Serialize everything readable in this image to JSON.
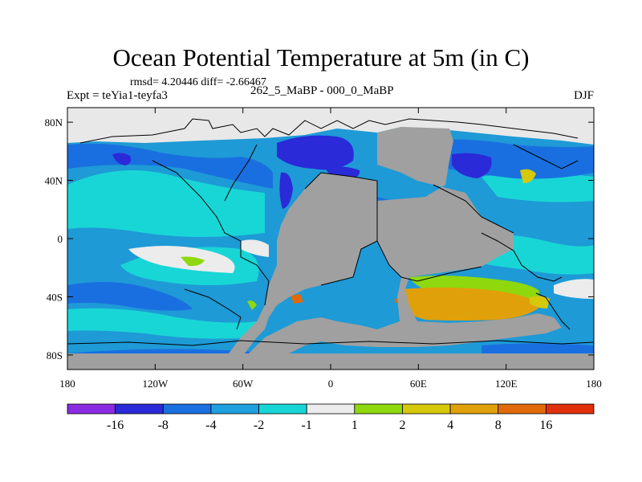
{
  "title": "Ocean Potential Temperature at 5m (in C)",
  "stats": "rmsd= 4.20446 diff= -2.66467",
  "expt": "Expt = teYia1-teyfa3",
  "subtitle": "262_5_MaBP - 000_0_MaBP",
  "season": "DJF",
  "map": {
    "lon_range": [
      -180,
      180
    ],
    "lat_range": [
      -90,
      90
    ],
    "x_ticks": [
      {
        "lon": -180,
        "label": "180"
      },
      {
        "lon": -120,
        "label": "120W"
      },
      {
        "lon": -60,
        "label": "60W"
      },
      {
        "lon": 0,
        "label": "0"
      },
      {
        "lon": 60,
        "label": "60E"
      },
      {
        "lon": 120,
        "label": "120E"
      },
      {
        "lon": 180,
        "label": "180"
      }
    ],
    "y_ticks": [
      {
        "lat": 80,
        "label": "80N"
      },
      {
        "lat": 40,
        "label": "40N"
      },
      {
        "lat": 0,
        "label": "0"
      },
      {
        "lat": -40,
        "label": "40S"
      },
      {
        "lat": -80,
        "label": "80S"
      }
    ],
    "land_color": "#a0a0a0",
    "missing_color": "#e8e8e8",
    "ocean_background": "#1e9ad6"
  },
  "colorbar": {
    "colors": [
      "#8a2be2",
      "#2a2ad8",
      "#1a6fe0",
      "#1fa0e0",
      "#19d6d6",
      "#ececec",
      "#8fd80e",
      "#d6c80a",
      "#e0a00a",
      "#e06a0a",
      "#e0300a"
    ],
    "labels": [
      "-16",
      "-8",
      "-4",
      "-2",
      "-1",
      "1",
      "2",
      "4",
      "8",
      "16"
    ]
  }
}
